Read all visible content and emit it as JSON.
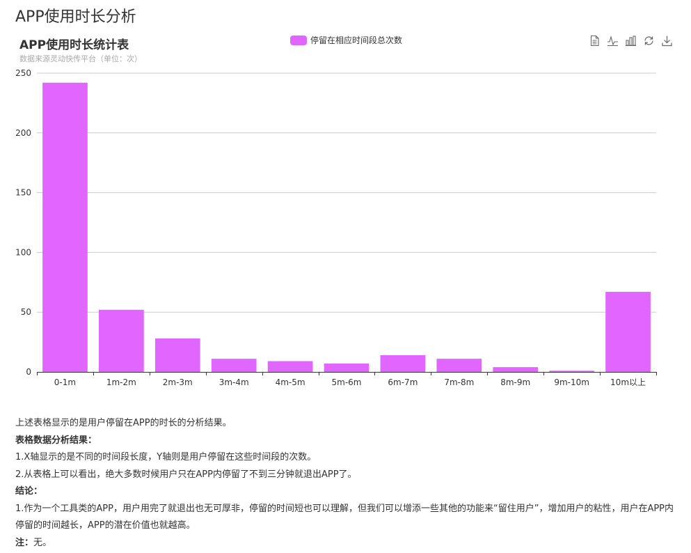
{
  "page": {
    "title": "APP使用时长分析"
  },
  "toolbox": [
    {
      "name": "data-view-icon"
    },
    {
      "name": "line-chart-icon"
    },
    {
      "name": "bar-chart-icon"
    },
    {
      "name": "restore-icon"
    },
    {
      "name": "download-icon"
    }
  ],
  "colors": {
    "bar": "#e066ff",
    "axis": "#333333",
    "grid": "#cccccc"
  },
  "chart_data": {
    "type": "bar",
    "title": "APP使用时长统计表",
    "subtitle": "数据来源灵动快传平台（单位：次）",
    "legend": "停留在相应时间段总次数",
    "legend_position": "top-center",
    "categories": [
      "0-1m",
      "1m-2m",
      "2m-3m",
      "3m-4m",
      "4m-5m",
      "5m-6m",
      "6m-7m",
      "7m-8m",
      "8m-9m",
      "9m-10m",
      "10m以上"
    ],
    "series": [
      {
        "name": "停留在相应时间段总次数",
        "values": [
          242,
          52,
          28,
          11,
          9,
          7,
          14,
          11,
          4,
          1,
          67
        ]
      }
    ],
    "yticks": [
      "0",
      "50",
      "100",
      "150",
      "200",
      "250"
    ],
    "ylim": [
      0,
      250
    ],
    "grid": true
  },
  "analysis": {
    "intro": "上述表格显示的是用户停留在APP的时长的分析结果。",
    "result_heading": "表格数据分析结果：",
    "result_items": [
      "1.X轴显示的是不同的时间段长度，Y轴则是用户停留在这些时间段的次数。",
      "2.从表格上可以看出，绝大多数时候用户只在APP内停留了不到三分钟就退出APP了。"
    ],
    "conclusion_heading": "结论：",
    "conclusion_items": [
      "1.作为一个工具类的APP，用户用完了就退出也无可厚非，停留的时间短也可以理解，但我们可以增添一些其他的功能来“留住用户”，增加用户的粘性，用户在APP内停留的时间越长，APP的潜在价值也就越高。"
    ],
    "note_label": "注：",
    "note_value": "无。"
  }
}
